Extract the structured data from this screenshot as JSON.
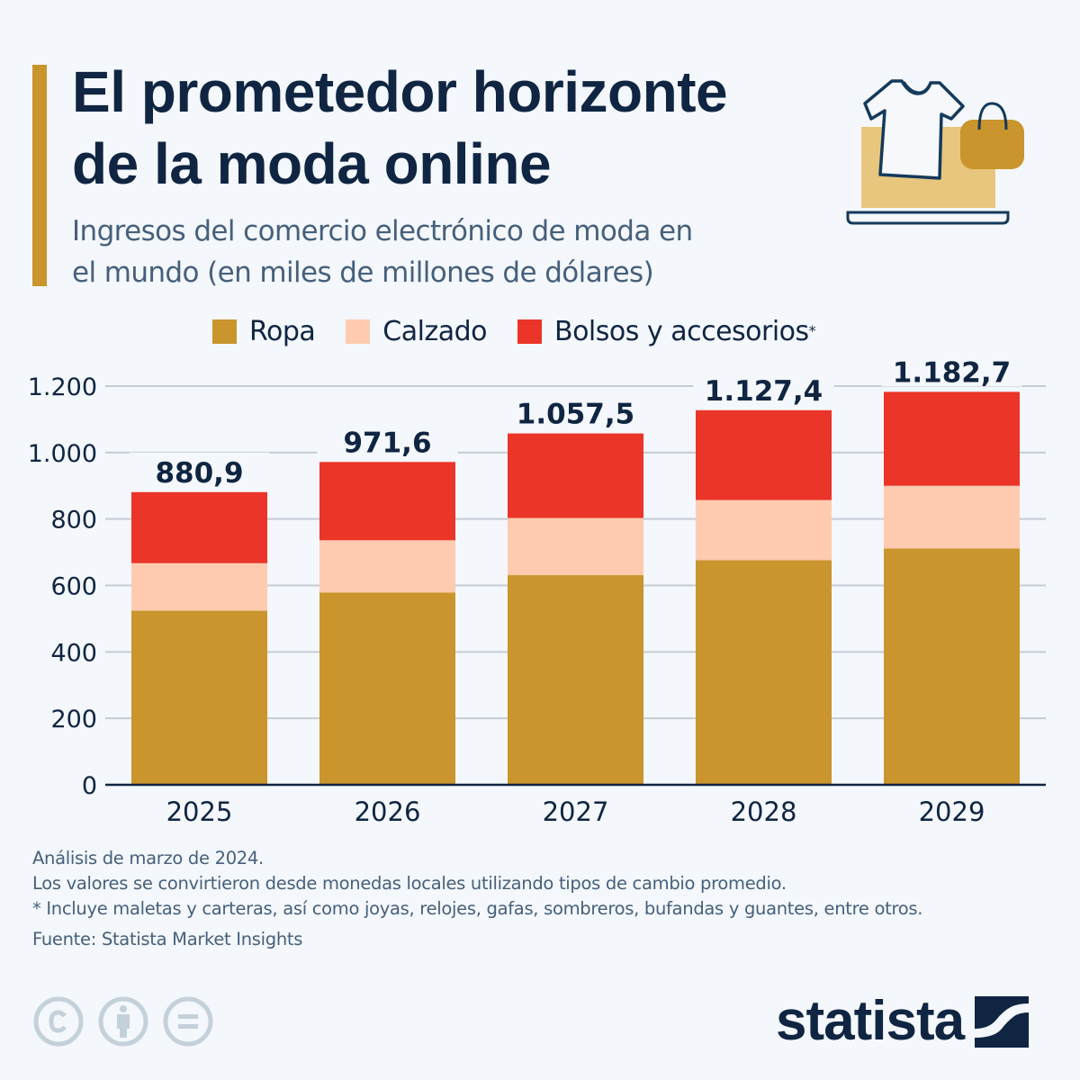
{
  "header": {
    "title_line1": "El prometedor horizonte",
    "title_line2": "de la moda online",
    "subtitle_line1": "Ingresos del comercio electrónico de moda en",
    "subtitle_line2": "el mundo (en miles de millones de dólares)"
  },
  "legend": [
    {
      "label": "Ropa",
      "color": "#c9952c",
      "suffix": ""
    },
    {
      "label": "Calzado",
      "color": "#fecbb0",
      "suffix": ""
    },
    {
      "label": "Bolsos y accesorios",
      "color": "#ea3528",
      "suffix": "*"
    }
  ],
  "chart_data": {
    "type": "bar",
    "stacked": true,
    "title": "El prometedor horizonte de la moda online",
    "subtitle": "Ingresos del comercio electrónico de moda en el mundo (en miles de millones de dólares)",
    "xlabel": "",
    "ylabel": "",
    "ylim": [
      0,
      1200
    ],
    "yticks": [
      0,
      200,
      400,
      600,
      800,
      1000,
      1200
    ],
    "ytick_labels": [
      "0",
      "200",
      "400",
      "600",
      "800",
      "1.000",
      "1.200"
    ],
    "grid": true,
    "legend_position": "top",
    "categories": [
      "2025",
      "2026",
      "2027",
      "2028",
      "2029"
    ],
    "series": [
      {
        "name": "Ropa",
        "color": "#c9952c",
        "values": [
          524,
          579,
          631,
          676,
          711
        ]
      },
      {
        "name": "Calzado",
        "color": "#fecbb0",
        "values": [
          143,
          157,
          172,
          181,
          189
        ]
      },
      {
        "name": "Bolsos y accesorios",
        "color": "#ea3528",
        "values": [
          213.9,
          235.6,
          254.5,
          270.4,
          282.7
        ]
      }
    ],
    "totals": [
      880.9,
      971.6,
      1057.5,
      1127.4,
      1182.7
    ],
    "total_labels": [
      "880,9",
      "971,6",
      "1.057,5",
      "1.127,4",
      "1.182,7"
    ]
  },
  "footer": {
    "note1": "Análisis de marzo de 2024.",
    "note2": "Los valores se convirtieron desde monedas locales utilizando tipos de cambio promedio.",
    "note3": "* Incluye maletas y carteras, así como joyas, relojes, gafas, sombreros, bufandas y guantes, entre otros.",
    "source": "Fuente: Statista Market Insights"
  },
  "brand": {
    "logo_text": "statista",
    "icons": [
      "cc-copyright-icon",
      "cc-attribution-icon",
      "cc-noderivs-icon"
    ]
  },
  "colors": {
    "text_dark": "#0f2542",
    "text_muted": "#46607c",
    "background": "#f4f7fb",
    "accent": "#c9952c"
  }
}
